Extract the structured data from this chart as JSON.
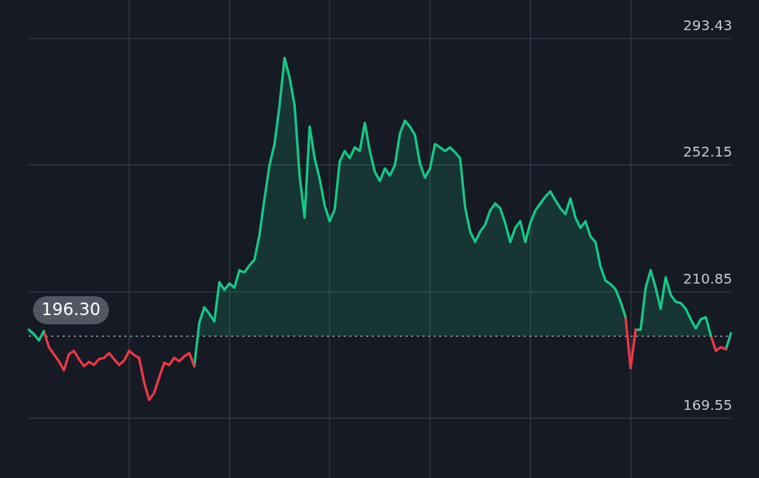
{
  "chart_data": {
    "type": "area",
    "categories": [
      null,
      null,
      null,
      null,
      null,
      null,
      null,
      null,
      null,
      null,
      null,
      null,
      null,
      null,
      null,
      null,
      null,
      null,
      null,
      null,
      null,
      null,
      null,
      null,
      null,
      null,
      null,
      null,
      null,
      null,
      null,
      null,
      null,
      null,
      null,
      null,
      null,
      null,
      null,
      null,
      null,
      null,
      null,
      null,
      null,
      null,
      null,
      null,
      null,
      null,
      null,
      null,
      null,
      null,
      null,
      null,
      null,
      null,
      null,
      null,
      null,
      null,
      null,
      null,
      null,
      null,
      null,
      null,
      null,
      null,
      null,
      null,
      null,
      null,
      null,
      null,
      null,
      null,
      null,
      null,
      null,
      null,
      null,
      null,
      null,
      null,
      null,
      null,
      null,
      null,
      null,
      null,
      null,
      null,
      null,
      null,
      null,
      null,
      null,
      null,
      null,
      null,
      null,
      null,
      null,
      null,
      null,
      null,
      null,
      null,
      null,
      null,
      null,
      null,
      null,
      null,
      null,
      null,
      null,
      null,
      null,
      null,
      null,
      null,
      null,
      null,
      null,
      null,
      null,
      null,
      null,
      null,
      null,
      null,
      null,
      null,
      null,
      null,
      null,
      null,
      null
    ],
    "series": [
      {
        "color": "#16c784",
        "values": [
          198.4,
          197.0,
          194.9,
          197.9,
          null,
          null,
          null,
          null,
          null,
          null,
          null,
          null,
          null,
          null,
          null,
          null,
          null,
          null,
          null,
          null,
          null,
          null,
          null,
          null,
          null,
          null,
          null,
          null,
          null,
          null,
          null,
          null,
          null,
          null,
          null,
          null,
          null,
          null,
          null,
          null,
          null,
          null,
          null,
          null,
          null,
          null,
          null,
          null,
          null,
          null,
          null,
          null,
          null,
          null,
          null,
          null,
          null,
          null,
          null,
          null,
          null,
          null,
          null,
          null,
          null,
          null,
          null,
          null,
          null,
          null,
          null,
          null,
          null,
          null,
          null,
          null,
          null,
          null,
          null,
          null,
          null,
          null,
          null,
          null,
          null,
          null,
          null,
          null,
          null,
          null,
          null,
          null,
          null,
          null,
          null,
          null,
          null,
          null,
          null,
          null,
          null,
          null,
          null,
          null,
          null,
          null,
          null,
          null,
          null,
          null,
          null,
          null,
          null,
          null,
          null,
          null,
          null,
          null,
          null,
          null,
          null,
          null,
          null,
          null,
          null,
          null,
          null,
          null,
          null,
          null,
          null,
          null,
          null,
          null,
          null,
          null,
          null,
          null,
          null,
          null,
          null
        ]
      },
      {
        "type": "line",
        "color": "#ea3943",
        "values": [
          null,
          null,
          null,
          197.9,
          192.7,
          190.4,
          188.1,
          185.1,
          190.4,
          191.5,
          188.8,
          186.5,
          187.9,
          186.9,
          188.8,
          189.2,
          190.8,
          188.8,
          186.9,
          188.3,
          191.5,
          190.1,
          189.2,
          181.2,
          175.5,
          177.8,
          182.8,
          187.6,
          186.9,
          189.2,
          188.1,
          189.7,
          190.8,
          186.5,
          null,
          null,
          null,
          null,
          null,
          null,
          null,
          null,
          null,
          null,
          null,
          null,
          null,
          null,
          null,
          null,
          null,
          null,
          null,
          null,
          null,
          null,
          null,
          null,
          null,
          null,
          null,
          null,
          null,
          null,
          null,
          null,
          null,
          null,
          null,
          null,
          null,
          null,
          null,
          null,
          null,
          null,
          null,
          null,
          null,
          null,
          null,
          null,
          null,
          null,
          null,
          null,
          null,
          null,
          null,
          null,
          null,
          null,
          null,
          null,
          null,
          null,
          null,
          null,
          null,
          null,
          null,
          null,
          null,
          null,
          null,
          null,
          null,
          null,
          null,
          null,
          null,
          null,
          null,
          null,
          null,
          null,
          null,
          null,
          null,
          null,
          null,
          null,
          null,
          null,
          null,
          null,
          null,
          null,
          null,
          null,
          null,
          null,
          null,
          null,
          null,
          null,
          null,
          null,
          null,
          null,
          null
        ]
      },
      {
        "color": "#16c784",
        "values": [
          null,
          null,
          null,
          null,
          null,
          null,
          null,
          null,
          null,
          null,
          null,
          null,
          null,
          null,
          null,
          null,
          null,
          null,
          null,
          null,
          null,
          null,
          null,
          null,
          null,
          null,
          null,
          null,
          null,
          null,
          null,
          null,
          null,
          186.5,
          200.7,
          205.7,
          203.6,
          201.1,
          213.9,
          211.4,
          213.5,
          212.1,
          217.8,
          217.1,
          219.4,
          221.3,
          229.3,
          241.2,
          252.1,
          259.0,
          271.6,
          287.1,
          280.7,
          271.6,
          248.7,
          235.0,
          264.7,
          254.4,
          247.6,
          238.9,
          233.8,
          237.7,
          253.3,
          256.7,
          254.4,
          257.9,
          256.7,
          265.9,
          256.7,
          249.9,
          246.9,
          251.0,
          248.7,
          252.1,
          262.4,
          266.6,
          264.7,
          262.0,
          252.6,
          248.0,
          251.0,
          259.0,
          257.9,
          256.7,
          257.9,
          256.3,
          254.4,
          238.4,
          230.4,
          227.0,
          230.4,
          232.7,
          237.3,
          239.6,
          238.0,
          233.2,
          227.0,
          231.6,
          233.8,
          227.0,
          233.2,
          237.3,
          239.6,
          241.8,
          243.5,
          240.7,
          238.0,
          236.1,
          241.2,
          235.0,
          231.6,
          233.8,
          228.8,
          227.0,
          219.0,
          214.4,
          213.3,
          211.6,
          207.5,
          202.5,
          null,
          null,
          null,
          null,
          null,
          null,
          null,
          null,
          null,
          null,
          null,
          null,
          null,
          null,
          null,
          null,
          null,
          null,
          null,
          null,
          null
        ]
      },
      {
        "type": "line",
        "color": "#ea3943",
        "values": [
          null,
          null,
          null,
          null,
          null,
          null,
          null,
          null,
          null,
          null,
          null,
          null,
          null,
          null,
          null,
          null,
          null,
          null,
          null,
          null,
          null,
          null,
          null,
          null,
          null,
          null,
          null,
          null,
          null,
          null,
          null,
          null,
          null,
          null,
          null,
          null,
          null,
          null,
          null,
          null,
          null,
          null,
          null,
          null,
          null,
          null,
          null,
          null,
          null,
          null,
          null,
          null,
          null,
          null,
          null,
          null,
          null,
          null,
          null,
          null,
          null,
          null,
          null,
          null,
          null,
          null,
          null,
          null,
          null,
          null,
          null,
          null,
          null,
          null,
          null,
          null,
          null,
          null,
          null,
          null,
          null,
          null,
          null,
          null,
          null,
          null,
          null,
          null,
          null,
          null,
          null,
          null,
          null,
          null,
          null,
          null,
          null,
          null,
          null,
          null,
          null,
          null,
          null,
          null,
          null,
          null,
          null,
          null,
          null,
          null,
          null,
          null,
          null,
          null,
          null,
          null,
          null,
          null,
          null,
          202.5,
          185.8,
          198.4,
          null,
          null,
          null,
          null,
          null,
          null,
          null,
          null,
          null,
          null,
          null,
          null,
          null,
          null,
          null,
          null,
          null,
          null,
          null
        ]
      },
      {
        "color": "#16c784",
        "values": [
          null,
          null,
          null,
          null,
          null,
          null,
          null,
          null,
          null,
          null,
          null,
          null,
          null,
          null,
          null,
          null,
          null,
          null,
          null,
          null,
          null,
          null,
          null,
          null,
          null,
          null,
          null,
          null,
          null,
          null,
          null,
          null,
          null,
          null,
          null,
          null,
          null,
          null,
          null,
          null,
          null,
          null,
          null,
          null,
          null,
          null,
          null,
          null,
          null,
          null,
          null,
          null,
          null,
          null,
          null,
          null,
          null,
          null,
          null,
          null,
          null,
          null,
          null,
          null,
          null,
          null,
          null,
          null,
          null,
          null,
          null,
          null,
          null,
          null,
          null,
          null,
          null,
          null,
          null,
          null,
          null,
          null,
          null,
          null,
          null,
          null,
          null,
          null,
          null,
          null,
          null,
          null,
          null,
          null,
          null,
          null,
          null,
          null,
          null,
          null,
          null,
          null,
          null,
          null,
          null,
          null,
          null,
          null,
          null,
          null,
          null,
          null,
          null,
          null,
          null,
          null,
          null,
          null,
          null,
          null,
          null,
          198.4,
          198.4,
          212.1,
          217.8,
          212.1,
          205.2,
          215.5,
          209.8,
          207.5,
          207.1,
          205.2,
          201.8,
          198.8,
          201.8,
          202.5,
          196.5,
          null,
          null,
          null,
          null
        ]
      },
      {
        "type": "line",
        "color": "#ea3943",
        "values": [
          null,
          null,
          null,
          null,
          null,
          null,
          null,
          null,
          null,
          null,
          null,
          null,
          null,
          null,
          null,
          null,
          null,
          null,
          null,
          null,
          null,
          null,
          null,
          null,
          null,
          null,
          null,
          null,
          null,
          null,
          null,
          null,
          null,
          null,
          null,
          null,
          null,
          null,
          null,
          null,
          null,
          null,
          null,
          null,
          null,
          null,
          null,
          null,
          null,
          null,
          null,
          null,
          null,
          null,
          null,
          null,
          null,
          null,
          null,
          null,
          null,
          null,
          null,
          null,
          null,
          null,
          null,
          null,
          null,
          null,
          null,
          null,
          null,
          null,
          null,
          null,
          null,
          null,
          null,
          null,
          null,
          null,
          null,
          null,
          null,
          null,
          null,
          null,
          null,
          null,
          null,
          null,
          null,
          null,
          null,
          null,
          null,
          null,
          null,
          null,
          null,
          null,
          null,
          null,
          null,
          null,
          null,
          null,
          null,
          null,
          null,
          null,
          null,
          null,
          null,
          null,
          null,
          null,
          null,
          null,
          null,
          null,
          null,
          null,
          null,
          null,
          null,
          null,
          null,
          null,
          null,
          null,
          null,
          null,
          null,
          null,
          196.5,
          191.5,
          192.7,
          192.0,
          null
        ]
      },
      {
        "type": "line",
        "color": "#16c784",
        "values": [
          null,
          null,
          null,
          null,
          null,
          null,
          null,
          null,
          null,
          null,
          null,
          null,
          null,
          null,
          null,
          null,
          null,
          null,
          null,
          null,
          null,
          null,
          null,
          null,
          null,
          null,
          null,
          null,
          null,
          null,
          null,
          null,
          null,
          null,
          null,
          null,
          null,
          null,
          null,
          null,
          null,
          null,
          null,
          null,
          null,
          null,
          null,
          null,
          null,
          null,
          null,
          null,
          null,
          null,
          null,
          null,
          null,
          null,
          null,
          null,
          null,
          null,
          null,
          null,
          null,
          null,
          null,
          null,
          null,
          null,
          null,
          null,
          null,
          null,
          null,
          null,
          null,
          null,
          null,
          null,
          null,
          null,
          null,
          null,
          null,
          null,
          null,
          null,
          null,
          null,
          null,
          null,
          null,
          null,
          null,
          null,
          null,
          null,
          null,
          null,
          null,
          null,
          null,
          null,
          null,
          null,
          null,
          null,
          null,
          null,
          null,
          null,
          null,
          null,
          null,
          null,
          null,
          null,
          null,
          null,
          null,
          null,
          null,
          null,
          null,
          null,
          null,
          null,
          null,
          null,
          null,
          null,
          null,
          null,
          null,
          null,
          null,
          null,
          null,
          192.0,
          197.2
        ]
      }
    ],
    "ylim": [
      150,
      306
    ],
    "yticks": [
      169.55,
      210.85,
      252.15,
      293.43
    ],
    "grid": true,
    "marker": "none",
    "ref_lines": [
      {
        "axis": "y",
        "value": 196.3,
        "label": "196.30",
        "line_style": "dotted",
        "color": "#80848e"
      }
    ]
  }
}
